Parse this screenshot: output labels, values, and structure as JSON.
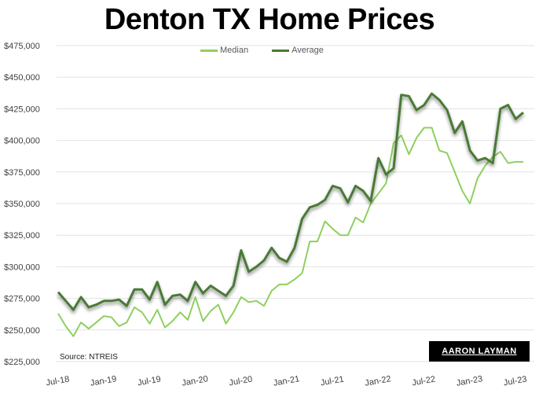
{
  "title": "Denton TX Home Prices",
  "source": "Source: NTREIS",
  "logo_text": "AARON LAYMAN",
  "legend": [
    {
      "label": "Median",
      "color": "#8fcf5f"
    },
    {
      "label": "Average",
      "color": "#4a7a35"
    }
  ],
  "chart_data": {
    "type": "line",
    "title": "Denton TX Home Prices",
    "xlabel": "",
    "ylabel": "",
    "ylim": [
      225000,
      475000
    ],
    "yticks": [
      225000,
      250000,
      275000,
      300000,
      325000,
      350000,
      375000,
      400000,
      425000,
      450000,
      475000
    ],
    "ytick_labels": [
      "$225,000",
      "$250,000",
      "$275,000",
      "$300,000",
      "$325,000",
      "$350,000",
      "$375,000",
      "$400,000",
      "$425,000",
      "$450,000",
      "$475,000"
    ],
    "xtick_labels": [
      "Jul-18",
      "Jan-19",
      "Jul-19",
      "Jan-20",
      "Jul-20",
      "Jan-21",
      "Jul-21",
      "Jan-22",
      "Jul-22",
      "Jan-23",
      "Jul-23"
    ],
    "grid": true,
    "legend_position": "top",
    "x": [
      "Jul-18",
      "Aug-18",
      "Sep-18",
      "Oct-18",
      "Nov-18",
      "Dec-18",
      "Jan-19",
      "Feb-19",
      "Mar-19",
      "Apr-19",
      "May-19",
      "Jun-19",
      "Jul-19",
      "Aug-19",
      "Sep-19",
      "Oct-19",
      "Nov-19",
      "Dec-19",
      "Jan-20",
      "Feb-20",
      "Mar-20",
      "Apr-20",
      "May-20",
      "Jun-20",
      "Jul-20",
      "Aug-20",
      "Sep-20",
      "Oct-20",
      "Nov-20",
      "Dec-20",
      "Jan-21",
      "Feb-21",
      "Mar-21",
      "Apr-21",
      "May-21",
      "Jun-21",
      "Jul-21",
      "Aug-21",
      "Sep-21",
      "Oct-21",
      "Nov-21",
      "Dec-21",
      "Jan-22",
      "Feb-22",
      "Mar-22",
      "Apr-22",
      "May-22",
      "Jun-22",
      "Jul-22",
      "Aug-22",
      "Sep-22",
      "Oct-22",
      "Nov-22",
      "Dec-22",
      "Jan-23",
      "Feb-23",
      "Mar-23",
      "Apr-23",
      "May-23",
      "Jun-23",
      "Jul-23",
      "Aug-23"
    ],
    "series": [
      {
        "name": "Median",
        "color": "#8fcf5f",
        "values": [
          263000,
          253000,
          245000,
          256000,
          251000,
          256000,
          261000,
          260000,
          253000,
          256000,
          268000,
          264000,
          255000,
          266000,
          252000,
          257000,
          264000,
          258000,
          276000,
          257000,
          265000,
          270000,
          255000,
          264000,
          276000,
          272000,
          273000,
          269000,
          281000,
          286000,
          286000,
          290000,
          295000,
          320000,
          320000,
          336000,
          330000,
          325000,
          325000,
          339000,
          335000,
          350000,
          358000,
          366000,
          398000,
          404000,
          389000,
          402000,
          410000,
          410000,
          392000,
          390000,
          375000,
          360000,
          350000,
          370000,
          380000,
          387000,
          391000,
          382000,
          383000,
          383000
        ]
      },
      {
        "name": "Average",
        "color": "#4a7a35",
        "values": [
          280000,
          273000,
          266000,
          276000,
          268000,
          270000,
          273000,
          273000,
          274000,
          269000,
          282000,
          282000,
          274000,
          288000,
          270000,
          277000,
          278000,
          273000,
          288000,
          279000,
          285000,
          281000,
          277000,
          285000,
          313000,
          296000,
          300000,
          305000,
          315000,
          307000,
          304000,
          315000,
          338000,
          347000,
          349000,
          353000,
          364000,
          362000,
          351000,
          364000,
          360000,
          352000,
          386000,
          373000,
          378000,
          436000,
          435000,
          424000,
          428000,
          437000,
          432000,
          424000,
          406000,
          415000,
          392000,
          384000,
          386000,
          382000,
          425000,
          428000,
          417000,
          422000
        ]
      }
    ]
  }
}
